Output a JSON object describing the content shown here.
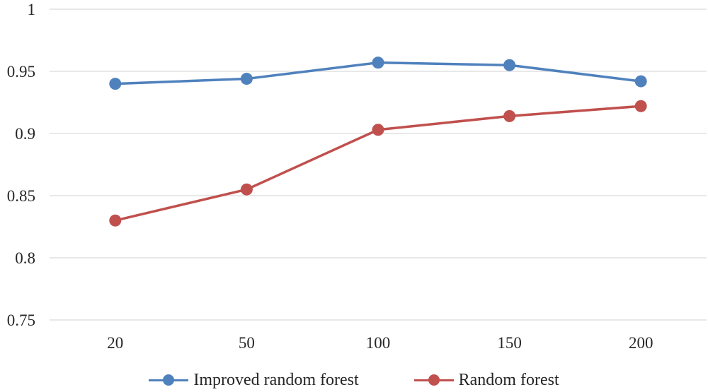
{
  "chart": {
    "background_color": "#ffffff",
    "text_color": "#262626",
    "gridline_color": "#d9d9d9"
  },
  "chart_data": {
    "type": "line",
    "title": "",
    "xlabel": "",
    "ylabel": "",
    "categories": [
      "20",
      "50",
      "100",
      "150",
      "200"
    ],
    "series": [
      {
        "name": "Improved random forest",
        "color": "#4F81BD",
        "values": [
          0.94,
          0.944,
          0.957,
          0.955,
          0.942
        ]
      },
      {
        "name": "Random forest",
        "color": "#C0504D",
        "values": [
          0.83,
          0.855,
          0.903,
          0.914,
          0.922
        ]
      }
    ],
    "ylim": [
      0.75,
      1
    ],
    "yticks": [
      1,
      0.95,
      0.9,
      0.85,
      0.8,
      0.75
    ],
    "ytick_labels": [
      "1",
      "0.95",
      "0.9",
      "0.85",
      "0.8",
      "0.75"
    ],
    "grid": true,
    "legend_position": "bottom",
    "marker": "circle"
  }
}
